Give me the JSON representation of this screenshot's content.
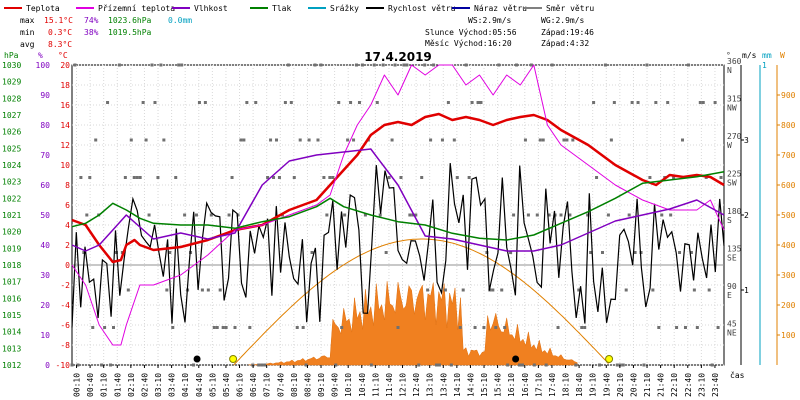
{
  "chart_data": {
    "type": "line",
    "title": "17.4.2019",
    "legend": [
      {
        "label": "Teplota",
        "color": "#e00000"
      },
      {
        "label": "Přízemní teplota",
        "color": "#e000e0"
      },
      {
        "label": "Vlhkost",
        "color": "#8000c0"
      },
      {
        "label": "Tlak",
        "color": "#008000"
      },
      {
        "label": "Srážky",
        "color": "#00a0c0"
      },
      {
        "label": "Rychlost větru",
        "color": "#000000"
      },
      {
        "label": "Náraz větru",
        "color": "#0000a0"
      },
      {
        "label": "Směr větru",
        "color": "#808080"
      }
    ],
    "stats": {
      "max": {
        "label": "max",
        "temp": "15.1°C",
        "hum": "74%",
        "press": "1023.6hPa",
        "rain": "0.0mm"
      },
      "min": {
        "label": "min",
        "temp": "0.3°C",
        "hum": "38%",
        "press": "1019.5hPa"
      },
      "avg": {
        "label": "avg",
        "temp": "8.3°C"
      }
    },
    "info": {
      "ws": "WS:2.9m/s",
      "wg": "WG:2.9m/s",
      "sun_rise": "Slunce Východ:05:56",
      "sun_set": "Západ:19:46",
      "moon_rise": "Měsíc  Východ:16:20",
      "moon_set": "Západ:4:32"
    },
    "axes": {
      "hpa": {
        "label": "hPa",
        "min": 1012,
        "max": 1030,
        "ticks": [
          "1012",
          "1013",
          "1014",
          "1015",
          "1016",
          "1017",
          "1018",
          "1019",
          "1020",
          "1021",
          "1022",
          "1023",
          "1024",
          "1025",
          "1026",
          "1027",
          "1028",
          "1029",
          "1030"
        ]
      },
      "pct": {
        "label": "%",
        "ticks": [
          "0",
          "10",
          "20",
          "30",
          "40",
          "50",
          "60",
          "70",
          "80",
          "90",
          "100"
        ]
      },
      "temp": {
        "label": "°C",
        "min": -10,
        "max": 20,
        "ticks": [
          "-10",
          "-8",
          "-6",
          "-4",
          "-2",
          "0",
          "2",
          "4",
          "6",
          "8",
          "10",
          "12",
          "14",
          "16",
          "18",
          "20"
        ]
      },
      "dir": {
        "label": "°",
        "ticks": [
          {
            "deg": "45",
            "name": "NE",
            "v": 45
          },
          {
            "deg": "90",
            "name": "E",
            "v": 90
          },
          {
            "deg": "135",
            "name": "SE",
            "v": 135
          },
          {
            "deg": "180",
            "name": "S",
            "v": 180
          },
          {
            "deg": "225",
            "name": "SW",
            "v": 225
          },
          {
            "deg": "270",
            "name": "W",
            "v": 270
          },
          {
            "deg": "315",
            "name": "NW",
            "v": 315
          },
          {
            "deg": "360",
            "name": "N",
            "v": 360
          }
        ]
      },
      "ms": {
        "label": "m/s",
        "ticks": [
          "1",
          "2",
          "3"
        ]
      },
      "mm": {
        "label": "mm",
        "ticks": [
          "1"
        ]
      },
      "w": {
        "label": "W",
        "ticks": [
          "100",
          "200",
          "300",
          "400",
          "500",
          "600",
          "700",
          "800",
          "900"
        ]
      },
      "x": {
        "label": "čas",
        "ticks": [
          "00:10",
          "00:40",
          "01:10",
          "01:40",
          "02:10",
          "02:40",
          "03:10",
          "03:40",
          "04:10",
          "04:40",
          "05:10",
          "05:40",
          "06:10",
          "06:40",
          "07:10",
          "07:40",
          "08:10",
          "08:40",
          "09:10",
          "09:40",
          "10:10",
          "10:40",
          "11:10",
          "11:40",
          "12:10",
          "12:40",
          "13:10",
          "13:40",
          "14:10",
          "14:40",
          "15:10",
          "15:40",
          "16:10",
          "16:40",
          "17:10",
          "17:40",
          "18:10",
          "18:40",
          "19:10",
          "19:40",
          "20:10",
          "20:40",
          "21:10",
          "21:40",
          "22:10",
          "22:40",
          "23:10",
          "23:40"
        ]
      }
    },
    "series": [
      {
        "name": "Teplota",
        "unit": "°C",
        "color": "#e00000",
        "x_hours": [
          0,
          0.5,
          1,
          1.5,
          1.8,
          2,
          2.3,
          2.5,
          3,
          4,
          5,
          6,
          7,
          8,
          9,
          10,
          10.5,
          11,
          11.5,
          12,
          12.5,
          13,
          13.5,
          14,
          14.5,
          15,
          15.5,
          16,
          16.5,
          17,
          17.5,
          18,
          19,
          20,
          21,
          21.5,
          22,
          22.5,
          23,
          23.5,
          24
        ],
        "y": [
          4.5,
          4,
          2,
          0.3,
          0.5,
          2,
          2.5,
          2,
          1.5,
          1.8,
          2.5,
          3.5,
          4,
          5.5,
          6.5,
          9.5,
          11,
          13,
          14,
          14.3,
          14,
          14.8,
          15.1,
          14.5,
          14.8,
          14.5,
          14,
          14.5,
          14.8,
          15,
          14.5,
          13.5,
          12,
          10,
          8.5,
          8,
          9,
          8.8,
          9,
          8.8,
          8
        ]
      },
      {
        "name": "Přízemní teplota",
        "unit": "°C",
        "color": "#e000e0",
        "x_hours": [
          0,
          0.5,
          1,
          1.5,
          1.8,
          2,
          2.5,
          3,
          4,
          5,
          6,
          7,
          8,
          9,
          9.5,
          10,
          10.5,
          11,
          11.5,
          12,
          12.5,
          13,
          13.5,
          14,
          14.5,
          15,
          15.5,
          16,
          16.5,
          17,
          17.5,
          18,
          19,
          20,
          21,
          22,
          23,
          23.5,
          24
        ],
        "y": [
          0,
          -2,
          -6,
          -8,
          -8,
          -6,
          -2,
          -2,
          -1,
          1,
          3.5,
          4,
          5,
          6,
          7,
          11,
          14,
          16,
          19,
          17,
          20,
          19,
          20,
          20,
          18,
          19,
          17,
          19,
          18,
          20,
          14,
          12,
          10,
          8,
          6.5,
          5.5,
          5.5,
          6.5,
          3.5
        ]
      },
      {
        "name": "Vlhkost",
        "unit": "%",
        "color": "#8000c0",
        "x_hours": [
          0,
          0.5,
          1,
          1.5,
          2,
          2.5,
          3,
          4,
          5,
          6,
          7,
          8,
          9,
          10,
          11,
          12,
          13,
          14,
          15,
          16,
          17,
          18,
          19,
          20,
          21,
          22,
          23,
          24
        ],
        "y": [
          40,
          38,
          40,
          45,
          50,
          46,
          42,
          44,
          42,
          44,
          60,
          68,
          70,
          71,
          72,
          60,
          43,
          42,
          40,
          38,
          38,
          40,
          44,
          48,
          50,
          52,
          55,
          50
        ]
      },
      {
        "name": "Tlak",
        "unit": "hPa",
        "color": "#008000",
        "x_hours": [
          0,
          0.5,
          1,
          1.5,
          2,
          2.5,
          3,
          4,
          5,
          6,
          7,
          8,
          9,
          9.5,
          10,
          11,
          12,
          13,
          14,
          15,
          16,
          17,
          18,
          19,
          20,
          21,
          22,
          23,
          24
        ],
        "y": [
          1020.3,
          1020.5,
          1021,
          1021.7,
          1021.3,
          1020.8,
          1020.5,
          1020.4,
          1020.4,
          1020.2,
          1020.6,
          1020.9,
          1021.5,
          1022,
          1021.5,
          1021,
          1020.6,
          1020.4,
          1019.9,
          1019.6,
          1019.5,
          1019.8,
          1020.5,
          1021.2,
          1022,
          1022.9,
          1023.1,
          1023.3,
          1023.6
        ]
      }
    ]
  }
}
